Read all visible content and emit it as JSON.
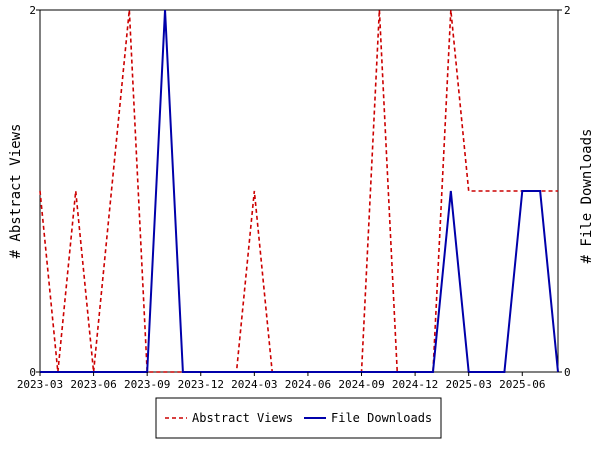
{
  "chart_data": {
    "type": "line",
    "x": [
      "2023-03",
      "2023-04",
      "2023-05",
      "2023-06",
      "2023-07",
      "2023-08",
      "2023-09",
      "2023-10",
      "2023-11",
      "2023-12",
      "2024-01",
      "2024-02",
      "2024-03",
      "2024-04",
      "2024-05",
      "2024-06",
      "2024-07",
      "2024-08",
      "2024-09",
      "2024-10",
      "2024-11",
      "2024-12",
      "2025-01",
      "2025-02",
      "2025-03",
      "2025-04",
      "2025-05",
      "2025-06",
      "2025-07",
      "2025-08"
    ],
    "x_tick_labels": [
      "2023-03",
      "2023-06",
      "2023-09",
      "2023-12",
      "2024-03",
      "2024-06",
      "2024-09",
      "2024-12",
      "2025-03",
      "2025-06"
    ],
    "series": [
      {
        "name": "Abstract Views",
        "axis": "left",
        "color": "#cc0000",
        "dash": "dashed",
        "values": [
          1,
          0,
          1,
          0,
          1,
          2,
          0,
          0,
          0,
          0,
          0,
          0,
          1,
          0,
          0,
          0,
          0,
          0,
          0,
          2,
          0,
          0,
          0,
          2,
          1,
          1,
          1,
          1,
          1,
          1
        ]
      },
      {
        "name": "File Downloads",
        "axis": "right",
        "color": "#0000aa",
        "dash": "solid",
        "values": [
          0,
          0,
          0,
          0,
          0,
          0,
          0,
          2,
          0,
          0,
          0,
          0,
          0,
          0,
          0,
          0,
          0,
          0,
          0,
          0,
          0,
          0,
          0,
          1,
          0,
          0,
          0,
          1,
          1,
          0
        ]
      }
    ],
    "ylabel_left": "# Abstract Views",
    "ylabel_right": "# File Downloads",
    "ylim_left": [
      0,
      2
    ],
    "ylim_right": [
      0,
      2
    ],
    "y_ticks_left": [
      "0",
      "2"
    ],
    "y_ticks_right": [
      "0",
      "2"
    ],
    "grid": false,
    "legend_position": "bottom"
  }
}
